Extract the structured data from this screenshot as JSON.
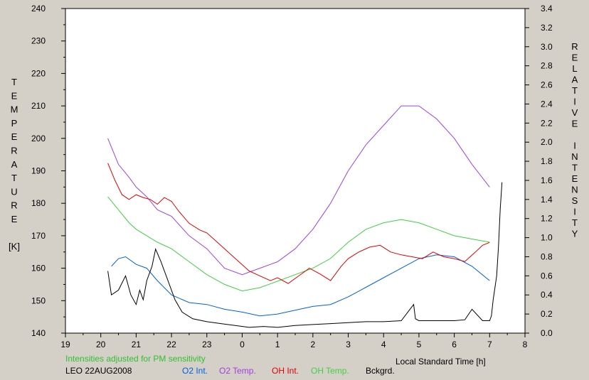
{
  "chart_data": {
    "type": "line",
    "title": "",
    "xlabel": "Local Standard Time [h]",
    "ylabel_left": [
      "T",
      "E",
      "M",
      "P",
      "E",
      "R",
      "A",
      "T",
      "U",
      "R",
      "E",
      "",
      "[K]"
    ],
    "ylabel_right": [
      "R",
      "E",
      "L",
      "A",
      "T",
      "I",
      "V",
      "E",
      "",
      "I",
      "N",
      "T",
      "E",
      "N",
      "S",
      "I",
      "T",
      "Y"
    ],
    "x_ticks": [
      "19",
      "20",
      "21",
      "22",
      "23",
      "0",
      "1",
      "2",
      "3",
      "4",
      "5",
      "6",
      "7",
      "8"
    ],
    "xlim": [
      19,
      32
    ],
    "ylim_left": [
      140,
      240
    ],
    "ylim_right": [
      0.0,
      3.4
    ],
    "y_left_ticks": [
      "140",
      "150",
      "160",
      "170",
      "180",
      "190",
      "200",
      "210",
      "220",
      "230",
      "240"
    ],
    "y_right_ticks": [
      "0.0",
      "0.2",
      "0.4",
      "0.6",
      "0.8",
      "1.0",
      "1.2",
      "1.4",
      "1.6",
      "1.8",
      "2.0",
      "2.2",
      "2.4",
      "2.6",
      "2.8",
      "3.0",
      "3.2",
      "3.4"
    ],
    "grid": false,
    "note": "Intensities adjusted for PM sensitivity",
    "station": "LEO 22AUG2008",
    "series": [
      {
        "name": "O2 Int.",
        "axis": "right",
        "color": "#0060e0",
        "x": [
          20.3,
          20.5,
          20.7,
          21.0,
          21.3,
          21.6,
          22.0,
          22.5,
          23.0,
          23.5,
          24.0,
          24.5,
          25.0,
          25.5,
          26.0,
          26.5,
          27.0,
          27.5,
          28.0,
          28.5,
          29.0,
          29.5,
          30.0,
          30.5,
          31.0
        ],
        "y": [
          0.7,
          0.78,
          0.8,
          0.72,
          0.68,
          0.55,
          0.4,
          0.32,
          0.3,
          0.25,
          0.22,
          0.18,
          0.2,
          0.24,
          0.28,
          0.3,
          0.38,
          0.48,
          0.58,
          0.68,
          0.78,
          0.82,
          0.8,
          0.7,
          0.55
        ]
      },
      {
        "name": "O2 Temp.",
        "axis": "left",
        "color": "#a040e0",
        "x": [
          20.2,
          20.5,
          20.8,
          21.0,
          21.3,
          21.6,
          22.0,
          22.5,
          23.0,
          23.5,
          24.0,
          24.5,
          25.0,
          25.5,
          26.0,
          26.5,
          27.0,
          27.5,
          28.0,
          28.5,
          29.0,
          29.5,
          30.0,
          30.5,
          31.0
        ],
        "y": [
          200,
          192,
          188,
          185,
          182,
          178,
          176,
          170,
          166,
          160,
          158,
          160,
          162,
          166,
          172,
          180,
          190,
          198,
          204,
          210,
          210,
          206,
          200,
          192,
          185
        ]
      },
      {
        "name": "OH Int.",
        "axis": "right",
        "color": "#e00000",
        "x": [
          20.2,
          20.4,
          20.6,
          20.8,
          21.0,
          21.2,
          21.4,
          21.6,
          21.8,
          22.0,
          22.2,
          22.5,
          22.8,
          23.0,
          23.3,
          23.6,
          23.9,
          24.2,
          24.5,
          24.8,
          25.0,
          25.3,
          25.6,
          25.9,
          26.2,
          26.5,
          26.8,
          27.0,
          27.3,
          27.6,
          27.9,
          28.2,
          28.5,
          28.8,
          29.1,
          29.4,
          29.7,
          30.0,
          30.3,
          30.6,
          30.8,
          31.0
        ],
        "y": [
          1.78,
          1.6,
          1.45,
          1.4,
          1.45,
          1.42,
          1.4,
          1.35,
          1.42,
          1.38,
          1.28,
          1.15,
          1.08,
          1.05,
          0.95,
          0.85,
          0.75,
          0.65,
          0.6,
          0.55,
          0.58,
          0.52,
          0.6,
          0.68,
          0.62,
          0.55,
          0.7,
          0.78,
          0.85,
          0.9,
          0.92,
          0.85,
          0.82,
          0.8,
          0.78,
          0.85,
          0.8,
          0.78,
          0.75,
          0.85,
          0.92,
          0.95
        ]
      },
      {
        "name": "OH Temp.",
        "axis": "left",
        "color": "#40d040",
        "x": [
          20.2,
          20.5,
          20.8,
          21.0,
          21.3,
          21.6,
          22.0,
          22.5,
          23.0,
          23.5,
          24.0,
          24.5,
          25.0,
          25.5,
          26.0,
          26.5,
          27.0,
          27.5,
          28.0,
          28.5,
          29.0,
          29.5,
          30.0,
          30.5,
          31.0
        ],
        "y": [
          182,
          178,
          174,
          172,
          170,
          168,
          166,
          162,
          158,
          155,
          153,
          154,
          156,
          158,
          160,
          163,
          168,
          172,
          174,
          175,
          174,
          172,
          170,
          169,
          168
        ]
      },
      {
        "name": "Bckgrd.",
        "axis": "right",
        "color": "#000000",
        "x": [
          20.2,
          20.3,
          20.5,
          20.7,
          20.85,
          21.0,
          21.1,
          21.2,
          21.3,
          21.45,
          21.55,
          21.7,
          21.9,
          22.1,
          22.3,
          22.6,
          23.0,
          23.4,
          23.8,
          24.2,
          24.6,
          25.0,
          25.5,
          26.0,
          26.5,
          27.0,
          27.5,
          28.0,
          28.5,
          28.85,
          28.9,
          29.0,
          29.5,
          30.0,
          30.3,
          30.5,
          30.8,
          31.0,
          31.05,
          31.1,
          31.2,
          31.25,
          31.3,
          31.35
        ],
        "y": [
          0.65,
          0.4,
          0.45,
          0.6,
          0.4,
          0.3,
          0.45,
          0.35,
          0.55,
          0.7,
          0.88,
          0.75,
          0.55,
          0.35,
          0.22,
          0.15,
          0.12,
          0.1,
          0.08,
          0.06,
          0.07,
          0.06,
          0.08,
          0.09,
          0.1,
          0.11,
          0.12,
          0.12,
          0.13,
          0.3,
          0.15,
          0.13,
          0.13,
          0.13,
          0.14,
          0.25,
          0.13,
          0.13,
          0.18,
          0.35,
          0.6,
          0.9,
          1.3,
          1.58
        ]
      }
    ]
  }
}
